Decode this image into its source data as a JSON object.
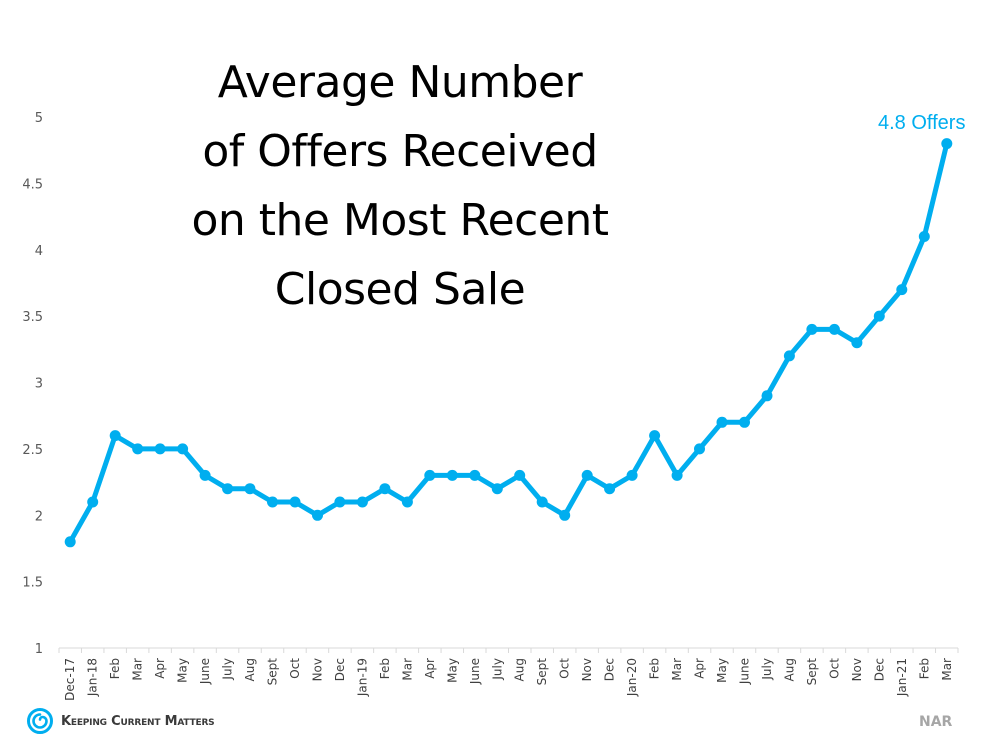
{
  "title": {
    "lines": [
      "Average Number",
      "of Offers Received",
      "on the Most Recent",
      "Closed Sale"
    ]
  },
  "annotation": "4.8 Offers",
  "logo": {
    "text": "Keeping Current Matters",
    "icon": "swirl-icon"
  },
  "source": "NAR",
  "colors": {
    "series": "#00AEEF",
    "axis": "#d9d9d9",
    "tick_text": "#595959",
    "source": "#a6a6a6"
  },
  "chart_data": {
    "type": "line",
    "title": "Average Number of Offers Received on the Most Recent Closed Sale",
    "xlabel": "",
    "ylabel": "",
    "ylim": [
      1,
      5
    ],
    "yticks": [
      1,
      1.5,
      2,
      2.5,
      3,
      3.5,
      4,
      4.5,
      5
    ],
    "grid": false,
    "legend": null,
    "categories": [
      "Dec-17",
      "Jan-18",
      "Feb",
      "Mar",
      "Apr",
      "May",
      "June",
      "July",
      "Aug",
      "Sept",
      "Oct",
      "Nov",
      "Dec",
      "Jan-19",
      "Feb",
      "Mar",
      "Apr",
      "May",
      "June",
      "July",
      "Aug",
      "Sept",
      "Oct",
      "Nov",
      "Dec",
      "Jan-20",
      "Feb",
      "Mar",
      "Apr",
      "May",
      "June",
      "July",
      "Aug",
      "Sept",
      "Oct",
      "Nov",
      "Dec",
      "Jan-21",
      "Feb",
      "Mar"
    ],
    "series": [
      {
        "name": "Average Number of Offers",
        "values": [
          1.8,
          2.1,
          2.6,
          2.5,
          2.5,
          2.5,
          2.3,
          2.2,
          2.2,
          2.1,
          2.1,
          2.0,
          2.1,
          2.1,
          2.2,
          2.1,
          2.3,
          2.3,
          2.3,
          2.2,
          2.3,
          2.1,
          2.0,
          2.3,
          2.2,
          2.3,
          2.6,
          2.3,
          2.5,
          2.7,
          2.7,
          2.9,
          3.2,
          3.4,
          3.4,
          3.3,
          3.5,
          3.7,
          4.1,
          4.8
        ]
      }
    ],
    "annotations": [
      {
        "x": "Mar",
        "index": 39,
        "y": 4.8,
        "text": "4.8 Offers"
      }
    ]
  }
}
